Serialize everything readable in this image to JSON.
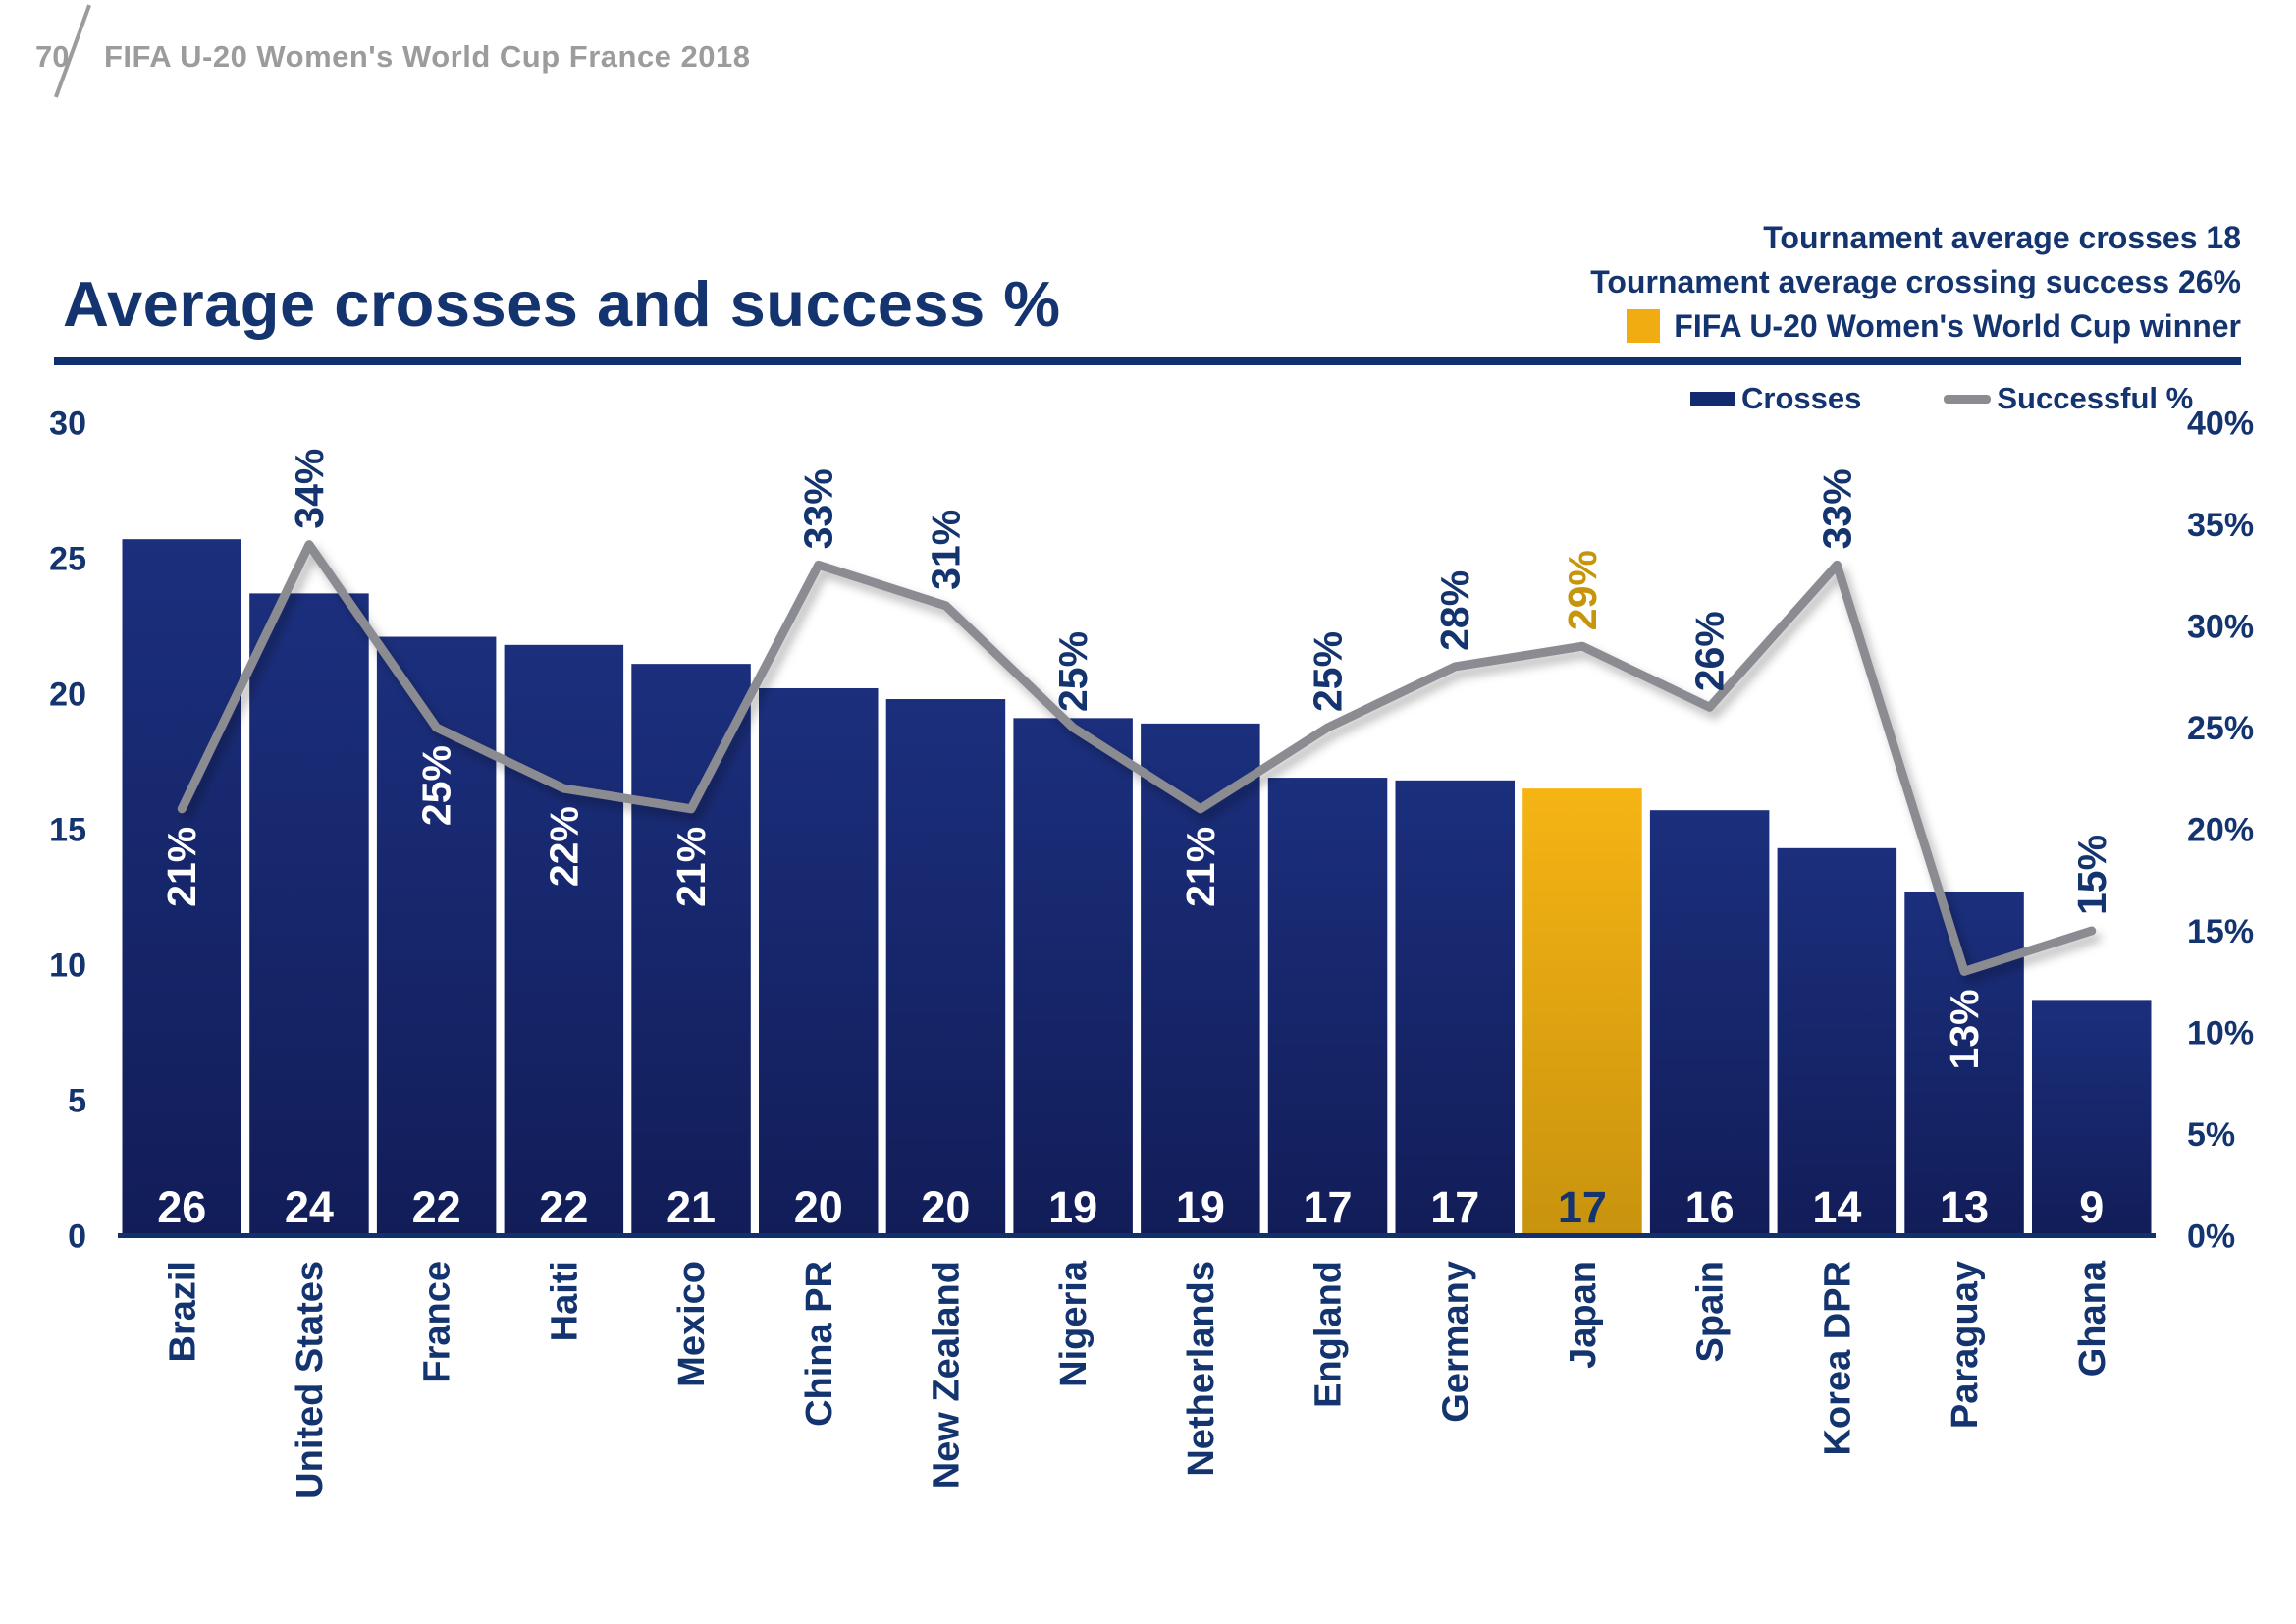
{
  "page": {
    "number": "70",
    "header_title": "FIFA U-20 Women's World Cup France 2018"
  },
  "title": "Average crosses and success %",
  "annotations": {
    "avg_crosses": "Tournament average crosses 18",
    "avg_success": "Tournament average crossing success 26%",
    "winner": "FIFA U-20 Women's World Cup winner"
  },
  "legend": {
    "bars": "Crosses",
    "line": "Successful %"
  },
  "colors": {
    "navy_text": "#14346f",
    "navy_bar_top": "#1b2f7d",
    "navy_bar_bottom": "#121d58",
    "gold_top": "#f6b414",
    "gold_bottom": "#c8930e",
    "gold_text": "#c6950b",
    "gray_line": "#8b8b92",
    "gray_header": "#9c9c9c",
    "white": "#ffffff",
    "axis_line": "#12306b"
  },
  "chart_data": {
    "type": "bar",
    "title": "Average crosses and success %",
    "categories": [
      "Brazil",
      "United States",
      "France",
      "Haiti",
      "Mexico",
      "China PR",
      "New Zealand",
      "Nigeria",
      "Netherlands",
      "England",
      "Germany",
      "Japan",
      "Spain",
      "Korea DPR",
      "Paraguay",
      "Ghana"
    ],
    "series": [
      {
        "name": "Crosses",
        "type": "bar",
        "values": [
          26,
          24,
          22,
          22,
          21,
          20,
          20,
          19,
          19,
          17,
          17,
          17,
          16,
          14,
          13,
          9
        ],
        "values_exact": [
          25.7,
          23.7,
          22.1,
          21.8,
          21.1,
          20.2,
          19.8,
          19.1,
          18.9,
          16.9,
          16.8,
          16.5,
          15.7,
          14.3,
          12.7,
          8.7
        ]
      },
      {
        "name": "Successful %",
        "type": "line",
        "values": [
          21,
          34,
          25,
          22,
          21,
          33,
          31,
          25,
          21,
          25,
          28,
          29,
          26,
          33,
          13,
          15
        ],
        "labels": [
          "21%",
          "34%",
          "25%",
          "22%",
          "21%",
          "33%",
          "31%",
          "25%",
          "21%",
          "25%",
          "28%",
          "29%",
          "26%",
          "33%",
          "13%",
          "15%"
        ],
        "label_side": [
          "below",
          "above",
          "below",
          "below",
          "below",
          "above",
          "above",
          "above",
          "below",
          "above",
          "above",
          "above",
          "above",
          "above",
          "below",
          "above"
        ]
      }
    ],
    "highlight_category": "Japan",
    "highlight_index": 11,
    "left_axis": {
      "label": "",
      "min": 0,
      "max": 30,
      "ticks": [
        0,
        5,
        10,
        15,
        20,
        25,
        30
      ]
    },
    "right_axis": {
      "label": "",
      "min": 0,
      "max": 40,
      "ticks": [
        "0%",
        "5%",
        "10%",
        "15%",
        "20%",
        "25%",
        "30%",
        "35%",
        "40%"
      ]
    },
    "grid": false,
    "legend_position": "top-right"
  }
}
